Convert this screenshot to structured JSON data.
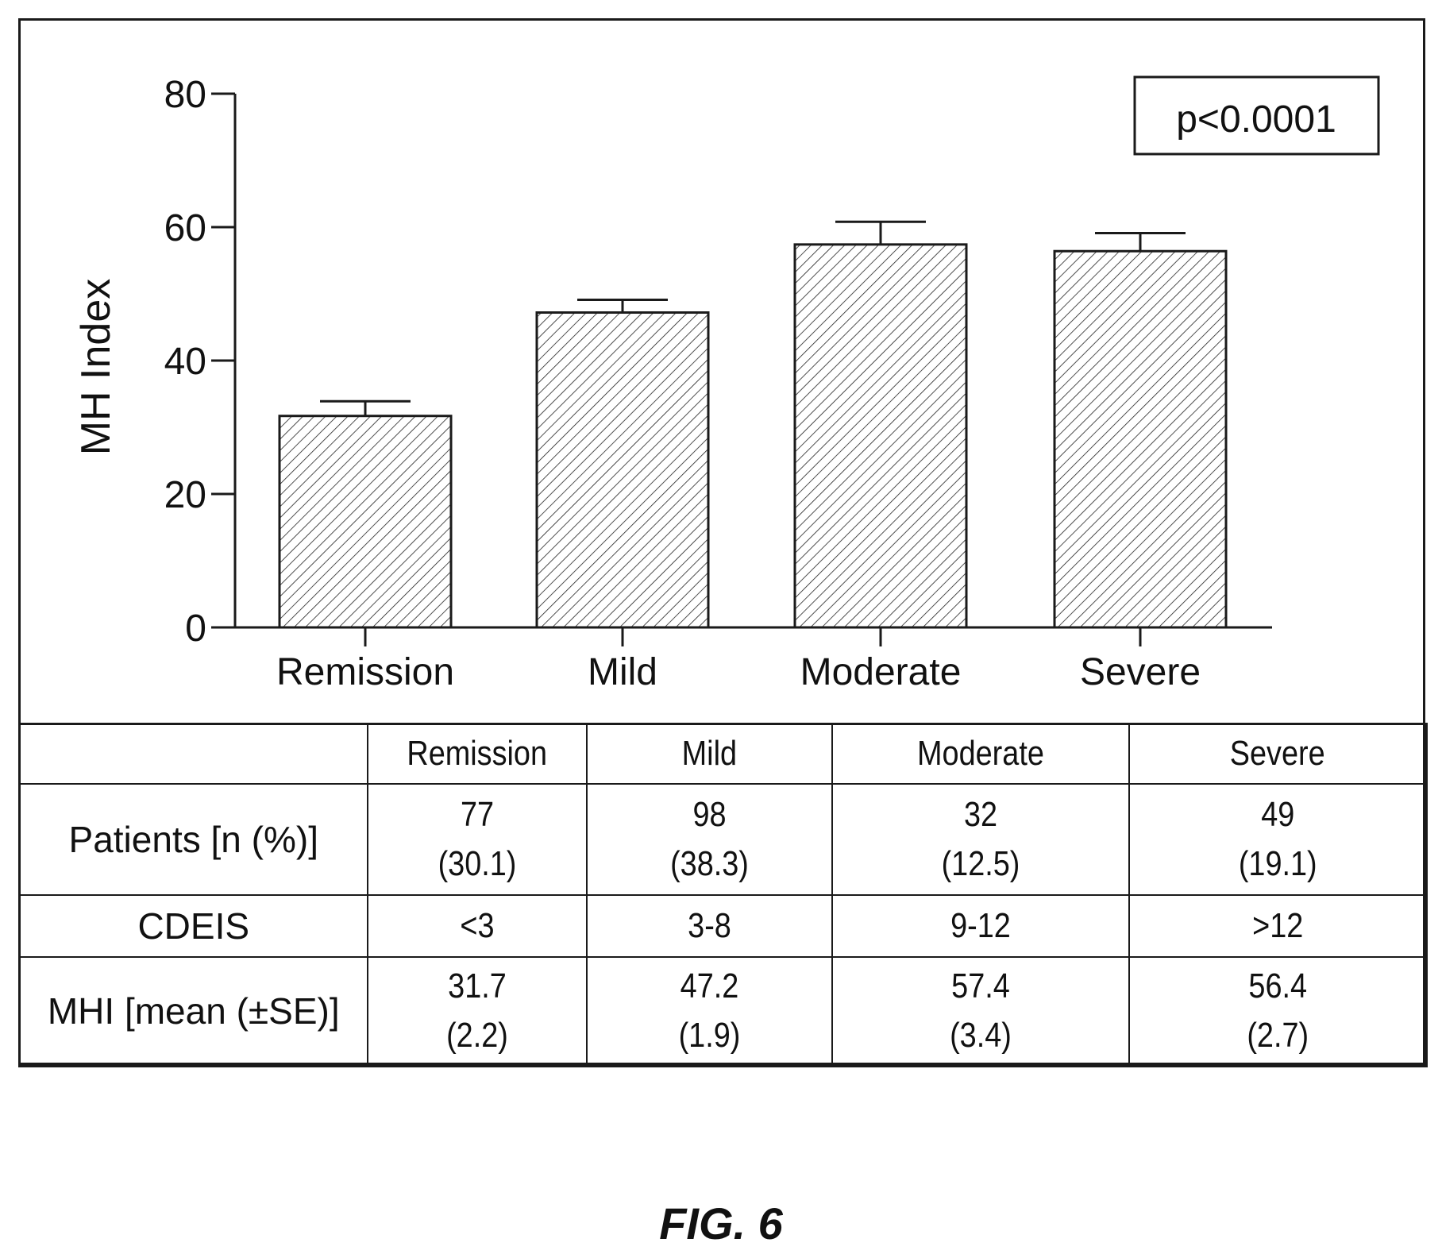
{
  "chart_data": {
    "type": "bar",
    "categories": [
      "Remission",
      "Mild",
      "Moderate",
      "Severe"
    ],
    "values": [
      31.7,
      47.2,
      57.4,
      56.4
    ],
    "errors": [
      2.2,
      1.9,
      3.4,
      2.7
    ],
    "ylabel": "MH Index",
    "xlabel": "",
    "ylim": [
      0,
      80
    ],
    "yticks": [
      0,
      20,
      40,
      60,
      80
    ],
    "bar_fill": "diagonal-hatch",
    "annotation": "p<0.0001",
    "annotation_placement": "top-right"
  },
  "table": {
    "headers": [
      "",
      "Remission",
      "Mild",
      "Moderate",
      "Severe"
    ],
    "rows": [
      {
        "label": "Patients [n (%)]",
        "cells": [
          [
            "77",
            "(30.1)"
          ],
          [
            "98",
            "(38.3)"
          ],
          [
            "32",
            "(12.5)"
          ],
          [
            "49",
            "(19.1)"
          ]
        ]
      },
      {
        "label": "CDEIS",
        "cells": [
          [
            "<3"
          ],
          [
            "3-8"
          ],
          [
            "9-12"
          ],
          [
            ">12"
          ]
        ]
      },
      {
        "label": "MHI [mean (±SE)]",
        "cells": [
          [
            "31.7",
            "(2.2)"
          ],
          [
            "47.2",
            "(1.9)"
          ],
          [
            "57.4",
            "(3.4)"
          ],
          [
            "56.4",
            "(2.7)"
          ]
        ]
      }
    ]
  },
  "caption": "FIG. 6"
}
